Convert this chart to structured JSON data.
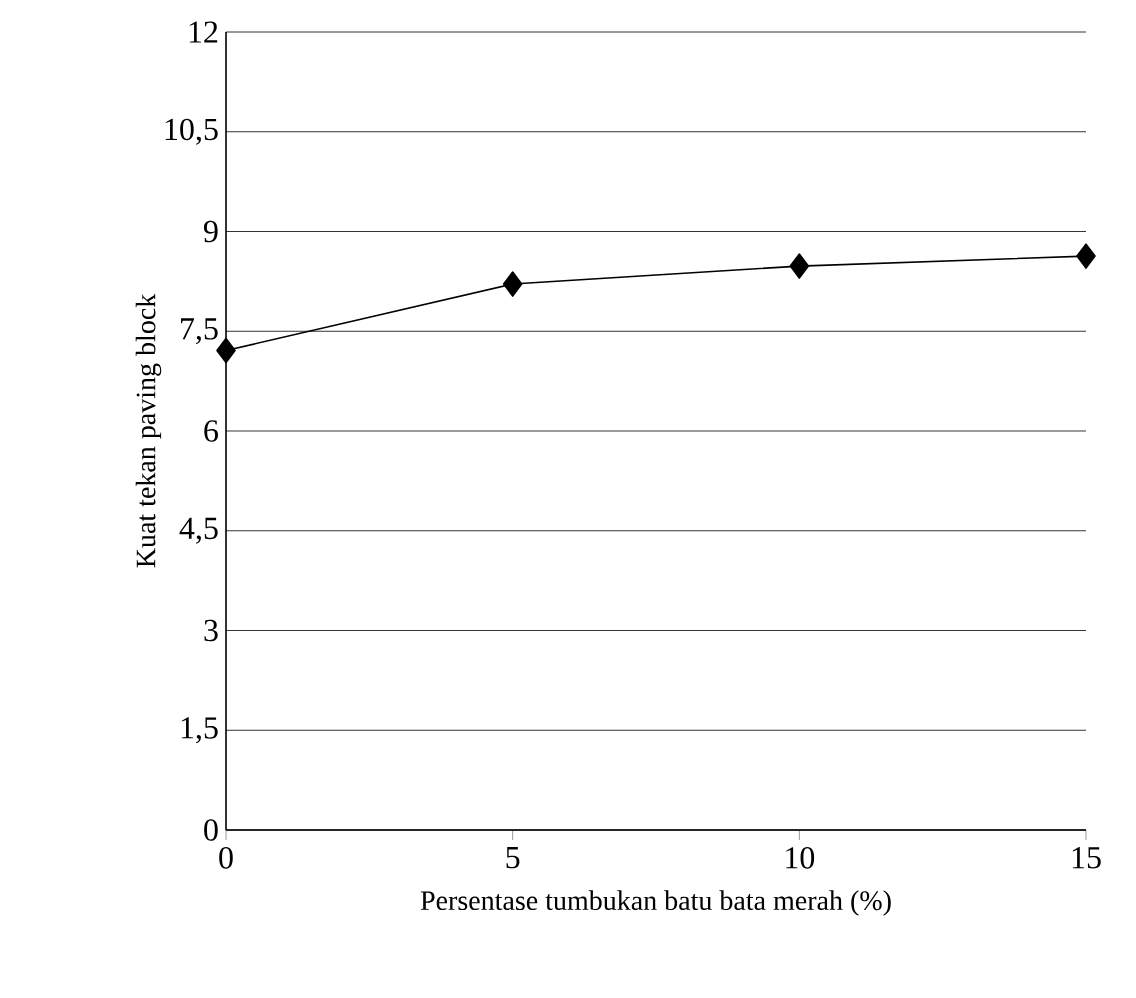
{
  "chart_data": {
    "type": "line",
    "xlabel": "Persentase tumbukan batu bata merah (%)",
    "ylabel": "Kuat tekan paving block",
    "x": [
      0,
      5,
      10,
      15
    ],
    "series": [
      {
        "color": "#000000",
        "values": [
          7.21,
          8.21,
          8.48,
          8.63
        ]
      }
    ],
    "xlim": [
      0,
      15
    ],
    "xticks": [
      0,
      5,
      10,
      15
    ],
    "ylim": [
      0,
      12
    ],
    "yticks": [
      0,
      {
        "value": 1.5,
        "label": "1,5"
      },
      3,
      {
        "value": 4.5,
        "label": "4,5"
      },
      6,
      {
        "value": 7.5,
        "label": "7,5"
      },
      9,
      {
        "value": 10.5,
        "label": "10,5"
      },
      12
    ],
    "grid": "y",
    "marker": "diamond",
    "line_style": "solid"
  }
}
